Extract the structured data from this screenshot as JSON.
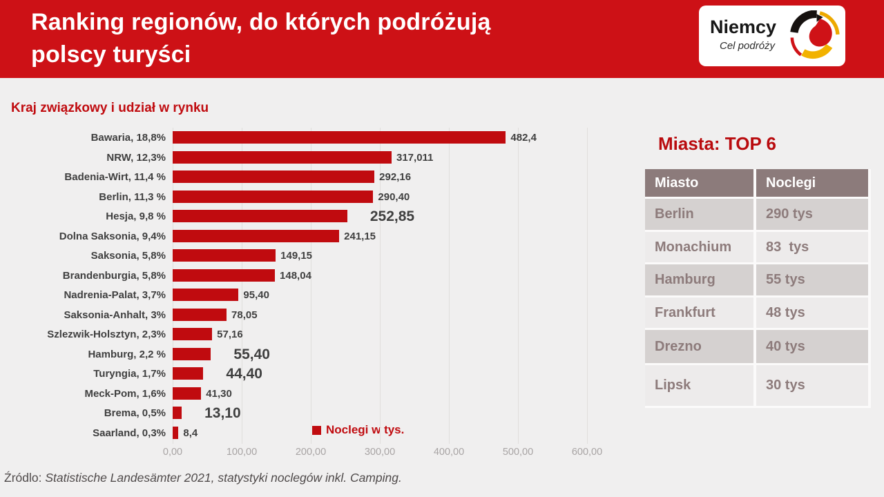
{
  "header": {
    "title_line1": "Ranking regionów, do których podróżują",
    "title_line2": "polscy turyści",
    "logo": {
      "brand": "Niemcy",
      "tagline": "Cel podróży",
      "icon": "german-swirl-icon"
    }
  },
  "colors": {
    "banner_red": "#cd1116",
    "bar_red": "#c00b0f",
    "table_header_bg": "#8c7b7b",
    "table_row_dark": "#d5d1d0",
    "table_row_light": "#edebeb",
    "table_text": "#8d7b7b",
    "background": "#f0efef"
  },
  "chart_data": {
    "type": "bar",
    "orientation": "horizontal",
    "title": "Kraj związkowy i udział w rynku",
    "legend": "Noclegi w tys.",
    "legend_position": "inside-bottom",
    "grid": true,
    "xlim": [
      0,
      600
    ],
    "x_ticks": [
      "0,00",
      "100,00",
      "200,00",
      "300,00",
      "400,00",
      "500,00",
      "600,00"
    ],
    "categories": [
      "Bawaria, 18,8%",
      "NRW, 12,3%",
      "Badenia-Wirt, 11,4 %",
      "Berlin, 11,3 %",
      "Hesja, 9,8 %",
      "Dolna Saksonia, 9,4%",
      "Saksonia, 5,8%",
      "Brandenburgia, 5,8%",
      "Nadrenia-Palat, 3,7%",
      "Saksonia-Anhalt, 3%",
      "Szlezwik-Holsztyn, 2,3%",
      "Hamburg, 2,2 %",
      "Turyngia, 1,7%",
      "Meck-Pom, 1,6%",
      "Brema, 0,5%",
      "Saarland, 0,3%"
    ],
    "values": [
      482.4,
      317.011,
      292.16,
      290.4,
      252.85,
      241.15,
      149.15,
      148.04,
      95.4,
      78.05,
      57.16,
      55.4,
      44.4,
      41.3,
      13.1,
      8.4
    ],
    "value_labels": [
      "482,4",
      "317,011",
      "292,16",
      "290,40",
      "252,85",
      "241,15",
      "149,15",
      "148,04",
      "95,40",
      "78,05",
      "57,16",
      "55,40",
      "44,40",
      "41,30",
      "13,10",
      "8,4"
    ],
    "emphasized": [
      false,
      false,
      false,
      false,
      true,
      false,
      false,
      false,
      false,
      false,
      false,
      true,
      true,
      false,
      true,
      false
    ]
  },
  "side_panel": {
    "title": "Miasta: TOP 6",
    "table": {
      "columns": [
        "Miasto",
        "Noclegi"
      ],
      "rows": [
        [
          "Berlin",
          "290 tys"
        ],
        [
          "Monachium",
          "83  tys"
        ],
        [
          "Hamburg",
          "55 tys"
        ],
        [
          "Frankfurt",
          "48 tys"
        ],
        [
          "Drezno",
          "40 tys"
        ],
        [
          "Lipsk",
          "30 tys"
        ]
      ]
    }
  },
  "footer": {
    "source_prefix": "Źródlo: ",
    "source_text": "Statistische Landesämter 2021, statystyki noclegów inkl. Camping."
  }
}
